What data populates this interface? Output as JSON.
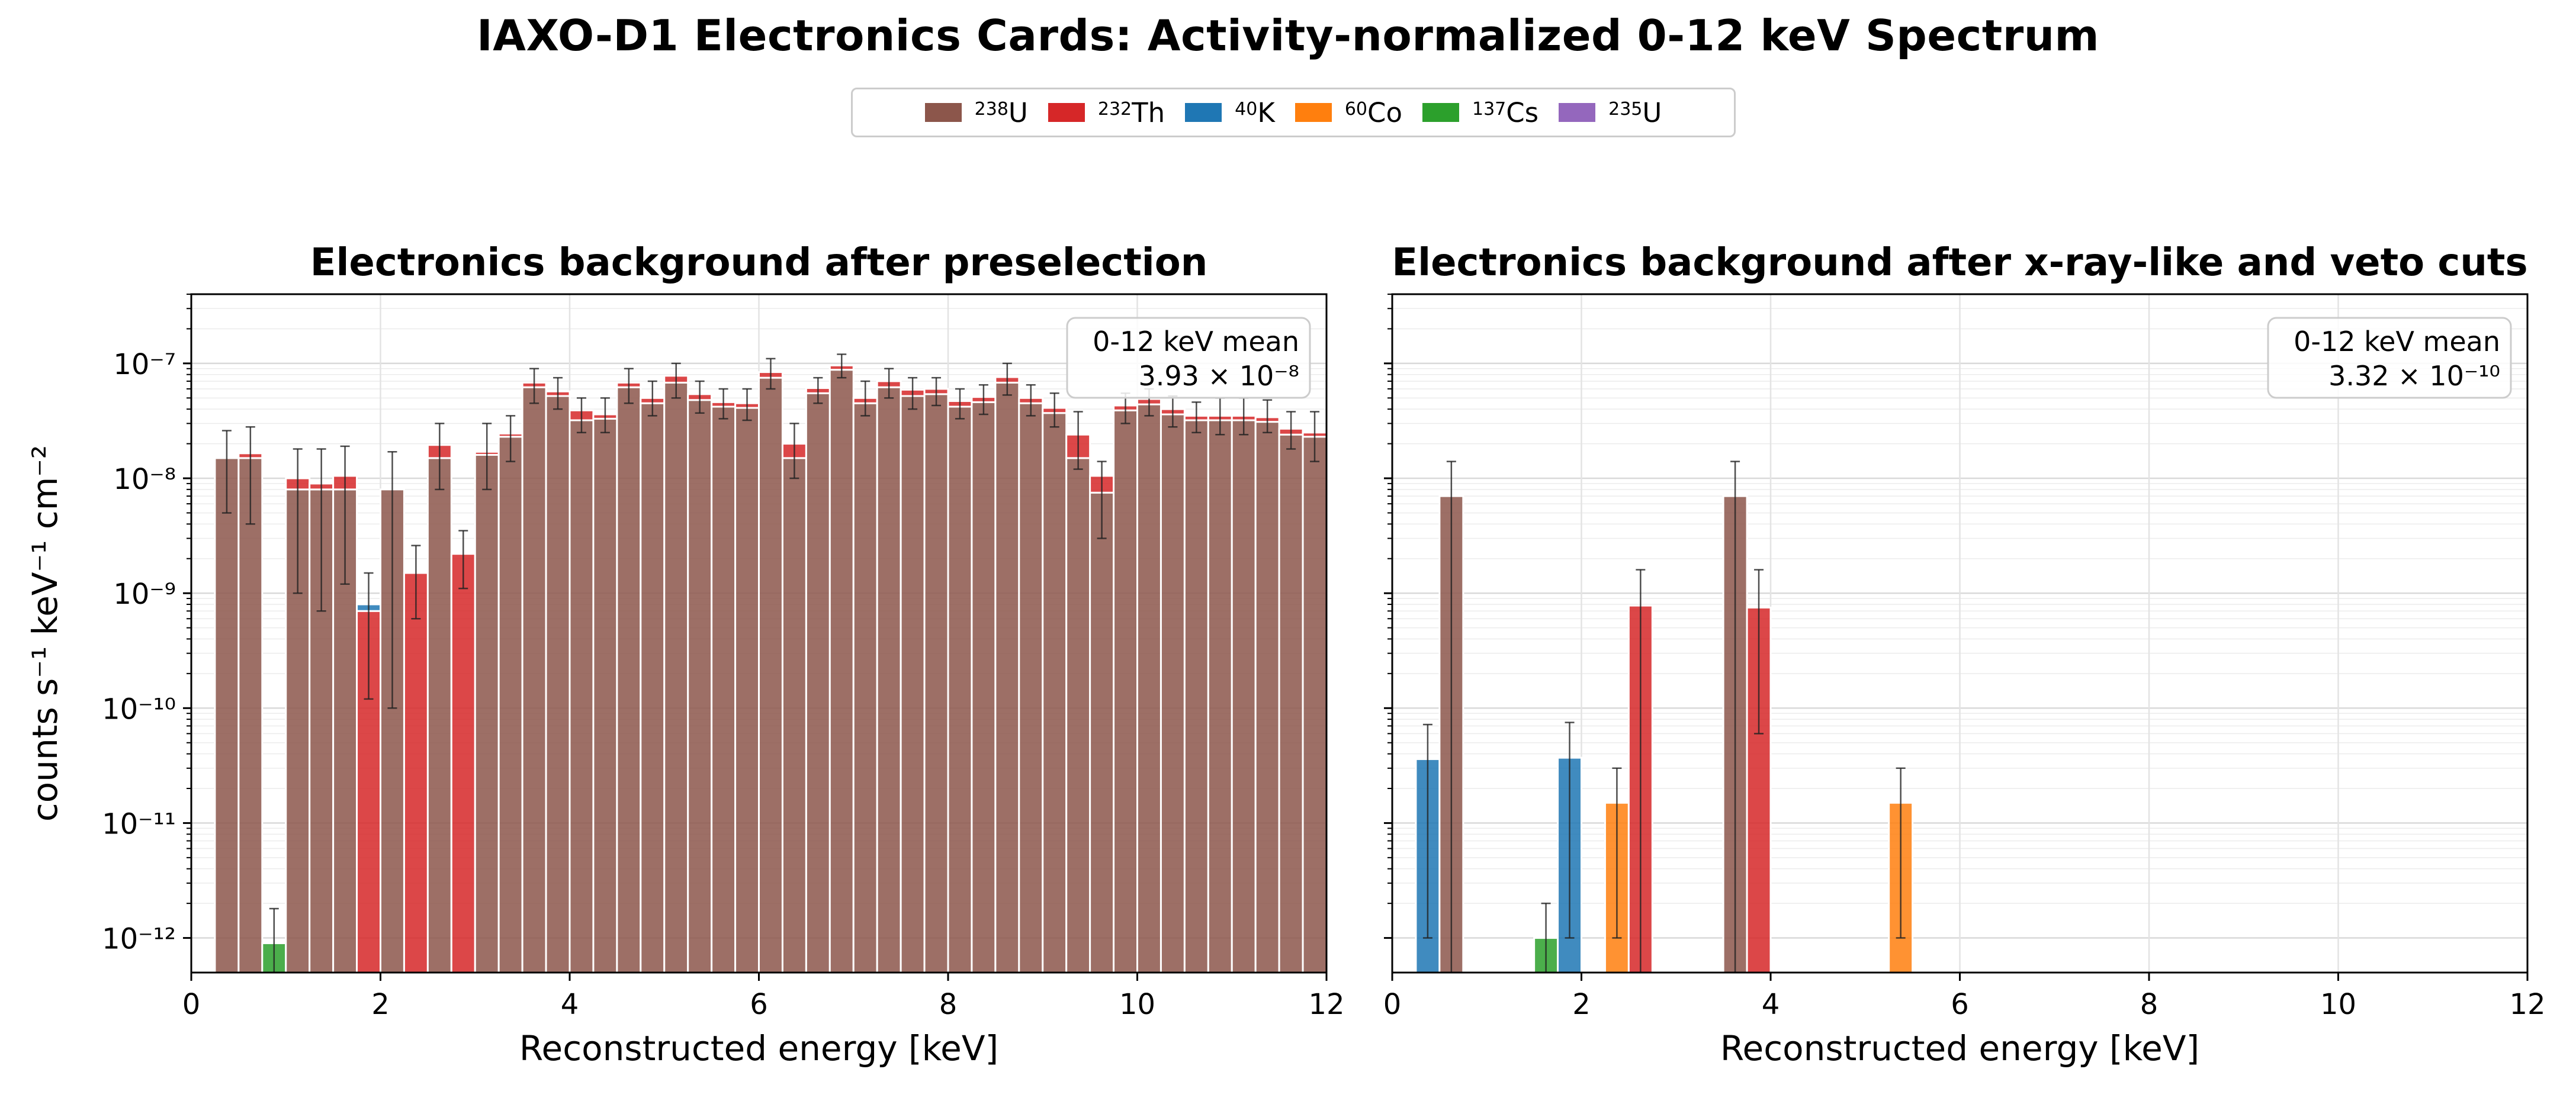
{
  "title": "IAXO-D1 Electronics Cards: Activity-normalized 0-12 keV Spectrum",
  "legend": {
    "placement": "top-center",
    "entries": [
      {
        "mass": "238",
        "element": "U",
        "color": "#8c564b"
      },
      {
        "mass": "232",
        "element": "Th",
        "color": "#d62728"
      },
      {
        "mass": "40",
        "element": "K",
        "color": "#1f77b4"
      },
      {
        "mass": "60",
        "element": "Co",
        "color": "#ff7f0e"
      },
      {
        "mass": "137",
        "element": "Cs",
        "color": "#2ca02c"
      },
      {
        "mass": "235",
        "element": "U",
        "color": "#9467bd"
      }
    ]
  },
  "chart_data": [
    {
      "type": "bar",
      "stacked": true,
      "log_y": true,
      "title": "Electronics background after preselection",
      "xlabel": "Reconstructed energy [keV]",
      "ylabel": "counts s⁻¹ keV⁻¹ cm⁻²",
      "xlim": [
        0,
        12
      ],
      "ylim": [
        5e-13,
        4e-07
      ],
      "grid": true,
      "bin_width": 0.25,
      "annotation": {
        "label": "0-12 keV mean",
        "mantissa": "3.93",
        "exponent": "-8",
        "placement": "top-right"
      },
      "bins": [
        {
          "e": 0.375,
          "U238": 1.5e-08,
          "Th232": 2e-10,
          "err": [
            5e-09,
            2.6e-08
          ]
        },
        {
          "e": 0.625,
          "U238": 1.5e-08,
          "Th232": 1.5e-09,
          "err": [
            4e-09,
            2.8e-08
          ]
        },
        {
          "e": 0.875,
          "Cs137": 9e-13,
          "err": [
            1e-13,
            1.8e-12
          ]
        },
        {
          "e": 1.125,
          "U238": 8e-09,
          "Th232": 2e-09,
          "err": [
            1e-09,
            1.8e-08
          ]
        },
        {
          "e": 1.375,
          "U238": 8e-09,
          "Th232": 1e-09,
          "err": [
            7e-10,
            1.8e-08
          ]
        },
        {
          "e": 1.625,
          "U238": 8e-09,
          "Th232": 2.5e-09,
          "err": [
            1.2e-09,
            1.9e-08
          ]
        },
        {
          "e": 1.875,
          "Th232": 7e-10,
          "K40": 1e-10,
          "err": [
            1.2e-10,
            1.5e-09
          ]
        },
        {
          "e": 2.125,
          "U238": 8e-09,
          "err": [
            1e-10,
            1.7e-08
          ]
        },
        {
          "e": 2.375,
          "Th232": 1.5e-09,
          "err": [
            6e-10,
            2.6e-09
          ]
        },
        {
          "e": 2.625,
          "U238": 1.5e-08,
          "Th232": 4.5e-09,
          "err": [
            8e-09,
            3e-08
          ]
        },
        {
          "e": 2.875,
          "Th232": 2.2e-09,
          "err": [
            1.1e-09,
            3.5e-09
          ]
        },
        {
          "e": 3.125,
          "U238": 1.6e-08,
          "Th232": 1e-09,
          "err": [
            8e-09,
            3e-08
          ]
        },
        {
          "e": 3.375,
          "U238": 2.3e-08,
          "Th232": 1.5e-09,
          "err": [
            1.4e-08,
            3.5e-08
          ]
        },
        {
          "e": 3.625,
          "U238": 6.2e-08,
          "Th232": 6e-09,
          "err": [
            4.5e-08,
            9e-08
          ]
        },
        {
          "e": 3.875,
          "U238": 5.2e-08,
          "Th232": 5e-09,
          "err": [
            4e-08,
            7.5e-08
          ]
        },
        {
          "e": 4.125,
          "U238": 3.2e-08,
          "Th232": 7e-09,
          "err": [
            2.5e-08,
            5e-08
          ]
        },
        {
          "e": 4.375,
          "U238": 3.3e-08,
          "Th232": 3e-09,
          "err": [
            2.5e-08,
            5e-08
          ]
        },
        {
          "e": 4.625,
          "U238": 6.2e-08,
          "Th232": 6e-09,
          "err": [
            4.5e-08,
            9e-08
          ]
        },
        {
          "e": 4.875,
          "U238": 4.5e-08,
          "Th232": 5e-09,
          "err": [
            3.5e-08,
            7e-08
          ]
        },
        {
          "e": 5.125,
          "U238": 6.8e-08,
          "Th232": 1e-08,
          "err": [
            5e-08,
            1e-07
          ]
        },
        {
          "e": 5.375,
          "U238": 4.8e-08,
          "Th232": 6e-09,
          "err": [
            3.7e-08,
            7e-08
          ]
        },
        {
          "e": 5.625,
          "U238": 4.2e-08,
          "Th232": 4e-09,
          "err": [
            3.3e-08,
            6e-08
          ]
        },
        {
          "e": 5.875,
          "U238": 4.1e-08,
          "Th232": 4e-09,
          "err": [
            3.2e-08,
            6e-08
          ]
        },
        {
          "e": 6.125,
          "U238": 7.5e-08,
          "Th232": 9e-09,
          "err": [
            6e-08,
            1.1e-07
          ]
        },
        {
          "e": 6.375,
          "U238": 1.5e-08,
          "Th232": 5e-09,
          "err": [
            1e-08,
            3e-08
          ]
        },
        {
          "e": 6.625,
          "U238": 5.5e-08,
          "Th232": 6e-09,
          "err": [
            4.5e-08,
            7.5e-08
          ]
        },
        {
          "e": 6.875,
          "U238": 8.8e-08,
          "Th232": 8e-09,
          "err": [
            7.5e-08,
            1.2e-07
          ]
        },
        {
          "e": 7.125,
          "U238": 4.5e-08,
          "Th232": 5e-09,
          "err": [
            3.5e-08,
            7e-08
          ]
        },
        {
          "e": 7.375,
          "U238": 6.2e-08,
          "Th232": 8e-09,
          "err": [
            5e-08,
            9e-08
          ]
        },
        {
          "e": 7.625,
          "U238": 5.2e-08,
          "Th232": 7e-09,
          "err": [
            4e-08,
            7.5e-08
          ]
        },
        {
          "e": 7.875,
          "U238": 5.4e-08,
          "Th232": 6e-09,
          "err": [
            4.3e-08,
            7.5e-08
          ]
        },
        {
          "e": 8.125,
          "U238": 4.2e-08,
          "Th232": 5e-09,
          "err": [
            3.3e-08,
            6e-08
          ]
        },
        {
          "e": 8.375,
          "U238": 4.6e-08,
          "Th232": 5e-09,
          "err": [
            3.6e-08,
            6.5e-08
          ]
        },
        {
          "e": 8.625,
          "U238": 6.8e-08,
          "Th232": 8e-09,
          "err": [
            5.3e-08,
            1e-07
          ]
        },
        {
          "e": 8.875,
          "U238": 4.5e-08,
          "Th232": 5e-09,
          "err": [
            3.5e-08,
            6.5e-08
          ]
        },
        {
          "e": 9.125,
          "U238": 3.7e-08,
          "Th232": 4e-09,
          "err": [
            2.8e-08,
            5.5e-08
          ]
        },
        {
          "e": 9.375,
          "U238": 1.5e-08,
          "Th232": 9e-09,
          "err": [
            1.2e-08,
            3.8e-08
          ]
        },
        {
          "e": 9.625,
          "U238": 7.5e-09,
          "Th232": 3e-09,
          "err": [
            3e-09,
            1.4e-08
          ]
        },
        {
          "e": 9.875,
          "U238": 3.9e-08,
          "Th232": 4e-09,
          "err": [
            3e-08,
            5.5e-08
          ]
        },
        {
          "e": 10.125,
          "U238": 4.4e-08,
          "Th232": 5e-09,
          "err": [
            3.5e-08,
            6e-08
          ]
        },
        {
          "e": 10.375,
          "U238": 3.6e-08,
          "Th232": 4e-09,
          "err": [
            2.8e-08,
            5.2e-08
          ]
        },
        {
          "e": 10.625,
          "U238": 3.2e-08,
          "Th232": 3e-09,
          "err": [
            2.5e-08,
            4.6e-08
          ]
        },
        {
          "e": 10.875,
          "U238": 3.2e-08,
          "Th232": 3e-09,
          "err": [
            2.4e-08,
            5e-08
          ]
        },
        {
          "e": 11.125,
          "U238": 3.2e-08,
          "Th232": 3e-09,
          "err": [
            2.4e-08,
            5e-08
          ]
        },
        {
          "e": 11.375,
          "U238": 3.1e-08,
          "Th232": 3e-09,
          "err": [
            2.5e-08,
            4.8e-08
          ]
        },
        {
          "e": 11.625,
          "U238": 2.4e-08,
          "Th232": 3e-09,
          "err": [
            1.8e-08,
            3.8e-08
          ]
        },
        {
          "e": 11.875,
          "U238": 2.3e-08,
          "Th232": 2e-09,
          "err": [
            1.4e-08,
            3.8e-08
          ]
        }
      ]
    },
    {
      "type": "bar",
      "stacked": true,
      "log_y": true,
      "title": "Electronics background after x-ray-like and veto cuts",
      "xlabel": "Reconstructed energy [keV]",
      "ylabel": "",
      "xlim": [
        0,
        12
      ],
      "ylim": [
        5e-13,
        4e-07
      ],
      "grid": true,
      "bin_width": 0.25,
      "annotation": {
        "label": "0-12 keV mean",
        "mantissa": "3.32",
        "exponent": "-10",
        "placement": "top-right"
      },
      "bins": [
        {
          "e": 0.375,
          "K40": 3.6e-11,
          "err": [
            1e-12,
            7.2e-11
          ]
        },
        {
          "e": 0.625,
          "U238": 7e-09,
          "err": [
            1e-13,
            1.4e-08
          ]
        },
        {
          "e": 1.625,
          "Cs137": 1e-12,
          "err": [
            1e-13,
            2e-12
          ]
        },
        {
          "e": 1.875,
          "K40": 3.7e-11,
          "err": [
            1e-12,
            7.5e-11
          ]
        },
        {
          "e": 2.375,
          "Co60": 1.5e-11,
          "err": [
            1e-12,
            3e-11
          ]
        },
        {
          "e": 2.625,
          "Th232": 7.8e-10,
          "err": [
            1e-13,
            1.6e-09
          ]
        },
        {
          "e": 3.625,
          "U238": 7e-09,
          "err": [
            1e-13,
            1.4e-08
          ]
        },
        {
          "e": 3.875,
          "Th232": 7.5e-10,
          "err": [
            6e-11,
            1.6e-09
          ]
        },
        {
          "e": 5.375,
          "Co60": 1.5e-11,
          "err": [
            1e-12,
            3e-11
          ]
        }
      ]
    }
  ]
}
